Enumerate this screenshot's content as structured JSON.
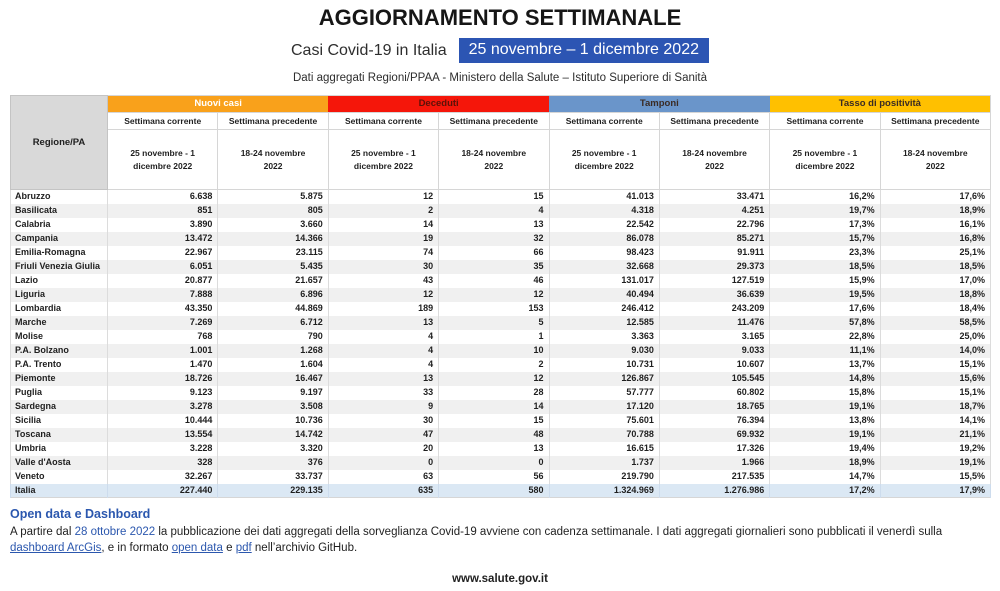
{
  "page": {
    "title": "AGGIORNAMENTO SETTIMANALE",
    "subtitle_label": "Casi Covid-19 in Italia",
    "subtitle_period": "25 novembre – 1 dicembre 2022",
    "source_line": "Dati aggregati Regioni/PPAA - Ministero della Salute – Istituto Superiore di Sanità",
    "website": "www.salute.gov.it"
  },
  "table": {
    "region_header": "Regione/PA",
    "groups": [
      {
        "label": "Nuovi casi",
        "color": "#F9A11B",
        "text_color": "#FFFFFF"
      },
      {
        "label": "Deceduti",
        "color": "#F5160A",
        "text_color": "#5C1208"
      },
      {
        "label": "Tamponi",
        "color": "#6A95CA",
        "text_color": "#3A2B24"
      },
      {
        "label": "Tasso di positività",
        "color": "#FFC000",
        "text_color": "#3A2B24"
      }
    ],
    "week_current": "Settimana corrente",
    "week_previous": "Settimana precedente",
    "period_current": "25 novembre - 1 dicembre 2022",
    "period_previous": "18-24 novembre 2022"
  },
  "chart_data": {
    "type": "table",
    "title": "Casi Covid-19 in Italia — 25 novembre – 1 dicembre 2022",
    "column_groups": [
      "Nuovi casi",
      "Deceduti",
      "Tamponi",
      "Tasso di positività"
    ],
    "columns": [
      "Regione/PA",
      "Nuovi casi - Settimana corrente (25 novembre - 1 dicembre 2022)",
      "Nuovi casi - Settimana precedente (18-24 novembre 2022)",
      "Deceduti - Settimana corrente (25 novembre - 1 dicembre 2022)",
      "Deceduti - Settimana precedente (18-24 novembre 2022)",
      "Tamponi - Settimana corrente (25 novembre - 1 dicembre 2022)",
      "Tamponi - Settimana precedente (18-24 novembre 2022)",
      "Tasso di positività - Settimana corrente (25 novembre - 1 dicembre 2022)",
      "Tasso di positività - Settimana precedente (18-24 novembre 2022)"
    ],
    "rows": [
      {
        "name": "Abruzzo",
        "values": [
          "6.638",
          "5.875",
          "12",
          "15",
          "41.013",
          "33.471",
          "16,2%",
          "17,6%"
        ]
      },
      {
        "name": "Basilicata",
        "values": [
          "851",
          "805",
          "2",
          "4",
          "4.318",
          "4.251",
          "19,7%",
          "18,9%"
        ]
      },
      {
        "name": "Calabria",
        "values": [
          "3.890",
          "3.660",
          "14",
          "13",
          "22.542",
          "22.796",
          "17,3%",
          "16,1%"
        ]
      },
      {
        "name": "Campania",
        "values": [
          "13.472",
          "14.366",
          "19",
          "32",
          "86.078",
          "85.271",
          "15,7%",
          "16,8%"
        ]
      },
      {
        "name": "Emilia-Romagna",
        "values": [
          "22.967",
          "23.115",
          "74",
          "66",
          "98.423",
          "91.911",
          "23,3%",
          "25,1%"
        ]
      },
      {
        "name": "Friuli Venezia Giulia",
        "values": [
          "6.051",
          "5.435",
          "30",
          "35",
          "32.668",
          "29.373",
          "18,5%",
          "18,5%"
        ]
      },
      {
        "name": "Lazio",
        "values": [
          "20.877",
          "21.657",
          "43",
          "46",
          "131.017",
          "127.519",
          "15,9%",
          "17,0%"
        ]
      },
      {
        "name": "Liguria",
        "values": [
          "7.888",
          "6.896",
          "12",
          "12",
          "40.494",
          "36.639",
          "19,5%",
          "18,8%"
        ]
      },
      {
        "name": "Lombardia",
        "values": [
          "43.350",
          "44.869",
          "189",
          "153",
          "246.412",
          "243.209",
          "17,6%",
          "18,4%"
        ]
      },
      {
        "name": "Marche",
        "values": [
          "7.269",
          "6.712",
          "13",
          "5",
          "12.585",
          "11.476",
          "57,8%",
          "58,5%"
        ]
      },
      {
        "name": "Molise",
        "values": [
          "768",
          "790",
          "4",
          "1",
          "3.363",
          "3.165",
          "22,8%",
          "25,0%"
        ]
      },
      {
        "name": "P.A. Bolzano",
        "values": [
          "1.001",
          "1.268",
          "4",
          "10",
          "9.030",
          "9.033",
          "11,1%",
          "14,0%"
        ]
      },
      {
        "name": "P.A. Trento",
        "values": [
          "1.470",
          "1.604",
          "4",
          "2",
          "10.731",
          "10.607",
          "13,7%",
          "15,1%"
        ]
      },
      {
        "name": "Piemonte",
        "values": [
          "18.726",
          "16.467",
          "13",
          "12",
          "126.867",
          "105.545",
          "14,8%",
          "15,6%"
        ]
      },
      {
        "name": "Puglia",
        "values": [
          "9.123",
          "9.197",
          "33",
          "28",
          "57.777",
          "60.802",
          "15,8%",
          "15,1%"
        ]
      },
      {
        "name": "Sardegna",
        "values": [
          "3.278",
          "3.508",
          "9",
          "14",
          "17.120",
          "18.765",
          "19,1%",
          "18,7%"
        ]
      },
      {
        "name": "Sicilia",
        "values": [
          "10.444",
          "10.736",
          "30",
          "15",
          "75.601",
          "76.394",
          "13,8%",
          "14,1%"
        ]
      },
      {
        "name": "Toscana",
        "values": [
          "13.554",
          "14.742",
          "47",
          "48",
          "70.788",
          "69.932",
          "19,1%",
          "21,1%"
        ]
      },
      {
        "name": "Umbria",
        "values": [
          "3.228",
          "3.320",
          "20",
          "13",
          "16.615",
          "17.326",
          "19,4%",
          "19,2%"
        ]
      },
      {
        "name": "Valle d'Aosta",
        "values": [
          "328",
          "376",
          "0",
          "0",
          "1.737",
          "1.966",
          "18,9%",
          "19,1%"
        ]
      },
      {
        "name": "Veneto",
        "values": [
          "32.267",
          "33.737",
          "63",
          "56",
          "219.790",
          "217.535",
          "14,7%",
          "15,5%"
        ]
      }
    ],
    "total_row": {
      "name": "Italia",
      "values": [
        "227.440",
        "229.135",
        "635",
        "580",
        "1.324.969",
        "1.276.986",
        "17,2%",
        "17,9%"
      ]
    }
  },
  "footer": {
    "heading": "Open data e Dashboard",
    "paragraph": [
      {
        "text": "A partire dal ",
        "link": false,
        "underline": false
      },
      {
        "text": "28 ottobre 2022",
        "link": true,
        "underline": false
      },
      {
        "text": " la pubblicazione dei dati aggregati della sorveglianza Covid-19 avviene con cadenza settimanale. I dati aggregati giornalieri sono pubblicati il venerdì sulla ",
        "link": false,
        "underline": false
      },
      {
        "text": "dashboard ArcGis",
        "link": true,
        "underline": true
      },
      {
        "text": ", e in formato ",
        "link": false,
        "underline": false
      },
      {
        "text": "open data",
        "link": true,
        "underline": true
      },
      {
        "text": " e ",
        "link": false,
        "underline": false
      },
      {
        "text": "pdf",
        "link": true,
        "underline": true
      },
      {
        "text": " nell’archivio GitHub.",
        "link": false,
        "underline": false
      }
    ]
  },
  "colors": {
    "highlight_blue": "#2C55B3",
    "link_blue": "#2B57AE",
    "total_row_bg": "#DBE8F4",
    "alt_row_bg": "#F0F0F0",
    "region_header_bg": "#D9D9D9"
  }
}
